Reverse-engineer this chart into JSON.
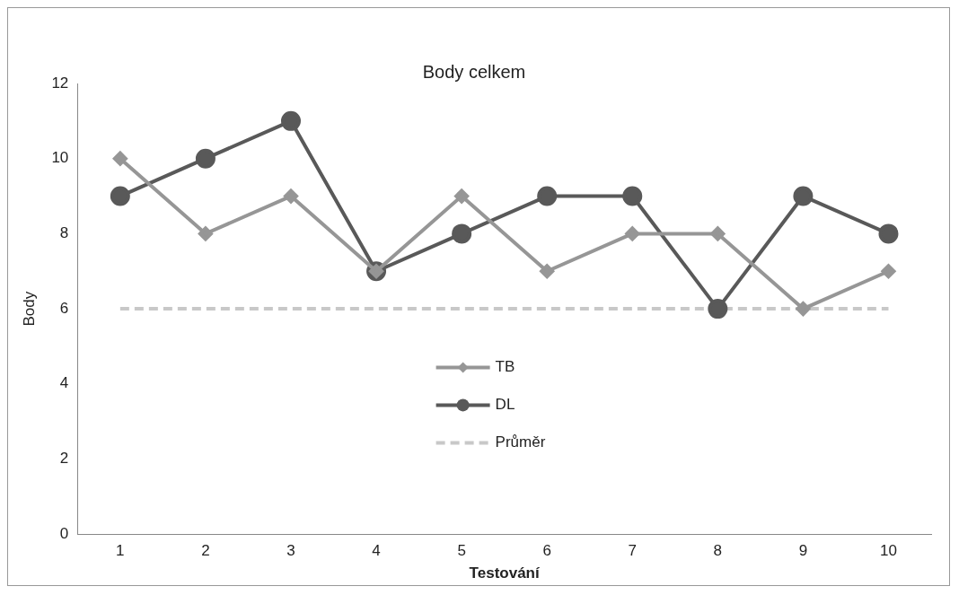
{
  "chart_data": {
    "type": "line",
    "title": "Body celkem",
    "xlabel": "Testování",
    "ylabel": "Body",
    "categories": [
      "1",
      "2",
      "3",
      "4",
      "5",
      "6",
      "7",
      "8",
      "9",
      "10"
    ],
    "series": [
      {
        "name": "TB",
        "color": "#969696",
        "marker": "diamond",
        "line_style": "solid",
        "values": [
          10,
          8,
          9,
          7,
          9,
          7,
          8,
          8,
          6,
          7
        ]
      },
      {
        "name": "DL",
        "color": "#595959",
        "marker": "circle",
        "line_style": "solid",
        "values": [
          9,
          10,
          11,
          7,
          8,
          9,
          9,
          6,
          9,
          8
        ]
      },
      {
        "name": "Průměr",
        "color": "#c8c8c8",
        "marker": "none",
        "line_style": "dashed",
        "values": [
          6,
          6,
          6,
          6,
          6,
          6,
          6,
          6,
          6,
          6
        ]
      }
    ],
    "ylim": [
      0,
      12
    ],
    "yticks": [
      0,
      2,
      4,
      6,
      8,
      10,
      12
    ],
    "grid": false,
    "legend": "center"
  }
}
